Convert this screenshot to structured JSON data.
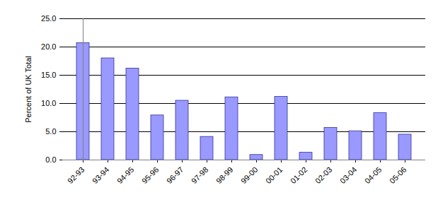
{
  "chart_data": {
    "type": "bar",
    "y_label": "Percent of UK Total",
    "categories": [
      "92-93",
      "93-94",
      "94-95",
      "95-96",
      "96-97",
      "97-98",
      "98-99",
      "99-00",
      "00-01",
      "01-02",
      "02-03",
      "03-04",
      "04-05",
      "05-06"
    ],
    "values": [
      20.7,
      18.0,
      16.2,
      7.9,
      10.5,
      4.1,
      11.1,
      0.9,
      11.2,
      1.3,
      5.7,
      5.1,
      8.3,
      4.5
    ],
    "color": "#9999ff",
    "ylim": [
      0,
      25
    ],
    "yticks": [
      {
        "value": 0,
        "label": "0.0"
      },
      {
        "value": 5,
        "label": "5.0"
      },
      {
        "value": 10,
        "label": "10.0"
      },
      {
        "value": 15,
        "label": "15.0"
      },
      {
        "value": 20,
        "label": "20.0"
      },
      {
        "value": 25,
        "label": "25.0"
      }
    ],
    "grid": true
  }
}
